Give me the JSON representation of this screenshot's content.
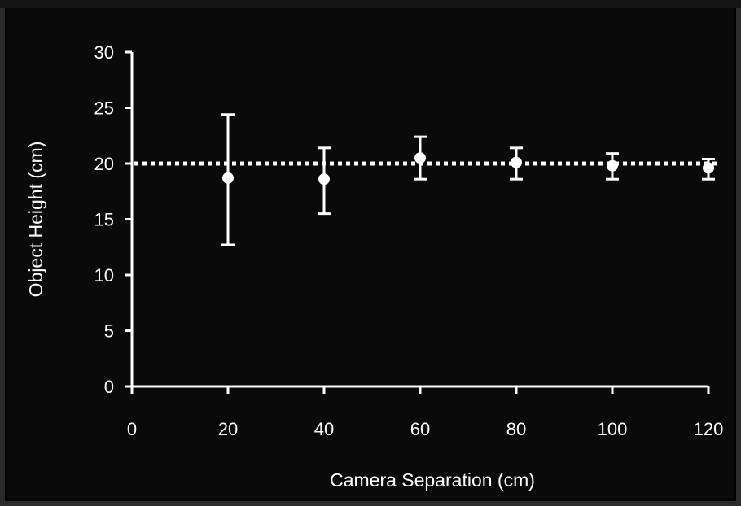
{
  "chart_data": {
    "type": "scatter",
    "title": "",
    "xlabel": "Camera Separation (cm)",
    "ylabel": "Object Height (cm)",
    "xlim": [
      0,
      120
    ],
    "ylim": [
      0,
      30
    ],
    "xticks": [
      "0",
      "20",
      "40",
      "60",
      "80",
      "100",
      "120"
    ],
    "yticks": [
      "0",
      "5",
      "10",
      "15",
      "20",
      "25",
      "30"
    ],
    "grid": false,
    "legend": "none",
    "points": [
      {
        "x": 20,
        "y": 18.7,
        "err_low": 12.7,
        "err_high": 24.4
      },
      {
        "x": 40,
        "y": 18.6,
        "err_low": 15.5,
        "err_high": 21.4
      },
      {
        "x": 60,
        "y": 20.5,
        "err_low": 18.6,
        "err_high": 22.4
      },
      {
        "x": 80,
        "y": 20.1,
        "err_low": 18.6,
        "err_high": 21.4
      },
      {
        "x": 100,
        "y": 19.8,
        "err_low": 18.6,
        "err_high": 20.9
      },
      {
        "x": 120,
        "y": 19.6,
        "err_low": 18.6,
        "err_high": 20.4
      }
    ],
    "reference_line": {
      "y": 20,
      "style": "dotted"
    },
    "colors": {
      "background": "#000000",
      "foreground": "#ffffff"
    }
  }
}
